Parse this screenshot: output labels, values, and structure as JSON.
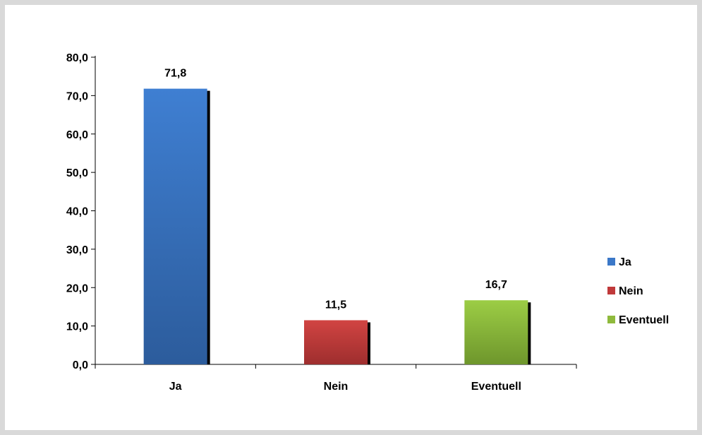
{
  "chart_data": {
    "type": "bar",
    "categories": [
      "Ja",
      "Nein",
      "Eventuell"
    ],
    "values": [
      71.8,
      11.5,
      16.7
    ],
    "value_labels": [
      "71,8",
      "11,5",
      "16,7"
    ],
    "ylim": [
      0,
      80
    ],
    "yticks": [
      "0,0",
      "10,0",
      "20,0",
      "30,0",
      "40,0",
      "50,0",
      "60,0",
      "70,0",
      "80,0"
    ],
    "grid": false,
    "legend": {
      "position": "right",
      "entries": [
        "Ja",
        "Nein",
        "Eventuell"
      ]
    },
    "colors": [
      "#3b78c8",
      "#c0393a",
      "#8fba3c"
    ]
  }
}
